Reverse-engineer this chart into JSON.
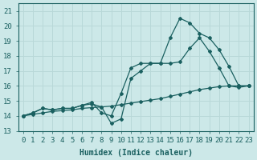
{
  "xlabel": "Humidex (Indice chaleur)",
  "bg_color": "#cce8e8",
  "grid_color": "#b8d8d8",
  "line_color": "#1a6060",
  "xlim": [
    -0.5,
    23.5
  ],
  "ylim": [
    13,
    21.5
  ],
  "xticks": [
    0,
    1,
    2,
    3,
    4,
    5,
    6,
    7,
    8,
    9,
    10,
    11,
    12,
    13,
    14,
    15,
    16,
    17,
    18,
    19,
    20,
    21,
    22,
    23
  ],
  "yticks": [
    13,
    14,
    15,
    16,
    17,
    18,
    19,
    20,
    21
  ],
  "line1_x": [
    0,
    1,
    2,
    3,
    4,
    5,
    6,
    7,
    8,
    9,
    10,
    11,
    12,
    13,
    14,
    15,
    16,
    17,
    18,
    19,
    20,
    21,
    22,
    23
  ],
  "line1_y": [
    14.0,
    14.2,
    14.5,
    14.4,
    14.5,
    14.5,
    14.7,
    14.8,
    14.6,
    13.5,
    13.8,
    16.5,
    17.0,
    17.5,
    17.5,
    17.5,
    17.6,
    18.5,
    19.2,
    18.3,
    17.2,
    16.0,
    15.9,
    16.0
  ],
  "line2_x": [
    0,
    1,
    2,
    3,
    4,
    5,
    6,
    7,
    8,
    9,
    10,
    11,
    12,
    13,
    14,
    15,
    16,
    17,
    18,
    19,
    20,
    21,
    22,
    23
  ],
  "line2_y": [
    14.0,
    14.2,
    14.5,
    14.4,
    14.5,
    14.5,
    14.7,
    14.9,
    14.2,
    14.0,
    15.5,
    17.2,
    17.5,
    17.5,
    17.5,
    19.2,
    20.5,
    20.2,
    19.5,
    19.2,
    18.4,
    17.3,
    16.0,
    16.0
  ],
  "line3_x": [
    0,
    1,
    2,
    3,
    4,
    5,
    6,
    7,
    8,
    9,
    10,
    11,
    12,
    13,
    14,
    15,
    16,
    17,
    18,
    19,
    20,
    21,
    22,
    23
  ],
  "line3_y": [
    14.0,
    14.1,
    14.2,
    14.3,
    14.35,
    14.4,
    14.5,
    14.55,
    14.6,
    14.65,
    14.75,
    14.85,
    14.95,
    15.05,
    15.15,
    15.3,
    15.45,
    15.6,
    15.75,
    15.85,
    15.95,
    16.0,
    16.0,
    16.0
  ],
  "xlabel_fontsize": 7,
  "tick_fontsize": 6.5
}
